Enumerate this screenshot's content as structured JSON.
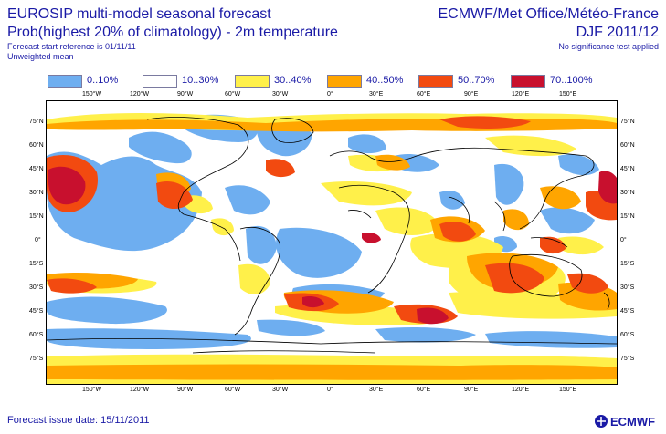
{
  "header": {
    "title_left": "EUROSIP multi-model seasonal forecast",
    "title_right": "ECMWF/Met Office/Météo-France",
    "subtitle_left": "Prob(highest 20% of climatology) - 2m temperature",
    "subtitle_right": "DJF 2011/12",
    "start_reference": "Forecast start reference is 01/11/11",
    "weighting": "Unweighted mean",
    "significance": "No significance test applied"
  },
  "legend": [
    {
      "label": "0..10%",
      "color": "#6eaef0"
    },
    {
      "label": "10..30%",
      "color": "#ffffff"
    },
    {
      "label": "30..40%",
      "color": "#fff04a"
    },
    {
      "label": "40..50%",
      "color": "#ffa500"
    },
    {
      "label": "50..70%",
      "color": "#f24a10"
    },
    {
      "label": "70..100%",
      "color": "#c8102e"
    }
  ],
  "axes": {
    "lon_labels": [
      "150°W",
      "120°W",
      "90°W",
      "60°W",
      "30°W",
      "0°",
      "30°E",
      "60°E",
      "90°E",
      "120°E",
      "150°E"
    ],
    "lat_labels": [
      "75°N",
      "60°N",
      "45°N",
      "30°N",
      "15°N",
      "0°",
      "15°S",
      "30°S",
      "45°S",
      "60°S",
      "75°S"
    ]
  },
  "footer": {
    "issue_date": "Forecast issue date: 15/11/2011",
    "logo_text": "ECMWF"
  },
  "colors": {
    "text": "#1a1aa6",
    "ocean": "#ffffff",
    "coast": "#000000"
  }
}
